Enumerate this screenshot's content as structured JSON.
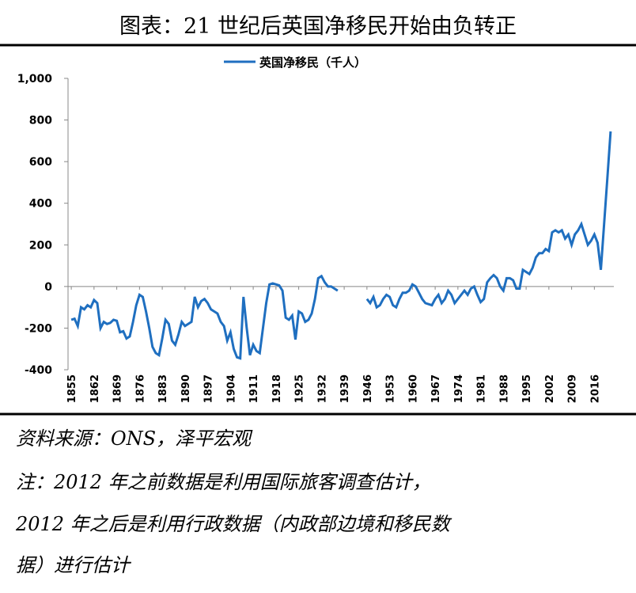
{
  "chart_data": {
    "type": "line",
    "title": "图表：21 世纪后英国净移民开始由负转正",
    "x": [
      1855,
      1856,
      1857,
      1858,
      1859,
      1860,
      1861,
      1862,
      1863,
      1864,
      1865,
      1866,
      1867,
      1868,
      1869,
      1870,
      1871,
      1872,
      1873,
      1874,
      1875,
      1876,
      1877,
      1878,
      1879,
      1880,
      1881,
      1882,
      1883,
      1884,
      1885,
      1886,
      1887,
      1888,
      1889,
      1890,
      1891,
      1892,
      1893,
      1894,
      1895,
      1896,
      1897,
      1898,
      1899,
      1900,
      1901,
      1902,
      1903,
      1904,
      1905,
      1906,
      1907,
      1908,
      1909,
      1910,
      1911,
      1912,
      1913,
      1914,
      1915,
      1916,
      1917,
      1918,
      1919,
      1920,
      1921,
      1922,
      1923,
      1924,
      1925,
      1926,
      1927,
      1928,
      1929,
      1930,
      1931,
      1932,
      1933,
      1934,
      1935,
      1936,
      1937,
      1938,
      1939,
      1940,
      1941,
      1942,
      1943,
      1944,
      1945,
      1946,
      1947,
      1948,
      1949,
      1950,
      1951,
      1952,
      1953,
      1954,
      1955,
      1956,
      1957,
      1958,
      1959,
      1960,
      1961,
      1962,
      1963,
      1964,
      1965,
      1966,
      1967,
      1968,
      1969,
      1970,
      1971,
      1972,
      1973,
      1974,
      1975,
      1976,
      1977,
      1978,
      1979,
      1980,
      1981,
      1982,
      1983,
      1984,
      1985,
      1986,
      1987,
      1988,
      1989,
      1990,
      1991,
      1992,
      1993,
      1994,
      1995,
      1996,
      1997,
      1998,
      1999,
      2000,
      2001,
      2002,
      2003,
      2004,
      2005,
      2006,
      2007,
      2008,
      2009,
      2010,
      2011,
      2012,
      2013,
      2014,
      2015,
      2016,
      2017,
      2018,
      2019,
      2020,
      2021
    ],
    "series": [
      {
        "name": "英国净移民（千人）",
        "color": "#1f6fc0",
        "values": [
          -160,
          -155,
          -190,
          -100,
          -110,
          -90,
          -100,
          -65,
          -80,
          -200,
          -170,
          -180,
          -175,
          -160,
          -165,
          -220,
          -215,
          -250,
          -240,
          -170,
          -90,
          -40,
          -50,
          -120,
          -200,
          -290,
          -320,
          -330,
          -250,
          -160,
          -180,
          -260,
          -280,
          -230,
          -170,
          -190,
          -180,
          -170,
          -50,
          -100,
          -70,
          -60,
          -80,
          -110,
          -120,
          -130,
          -170,
          -190,
          -260,
          -220,
          -300,
          -340,
          -345,
          -50,
          -200,
          -330,
          -280,
          -310,
          -320,
          -200,
          -80,
          10,
          15,
          10,
          5,
          -20,
          -150,
          -160,
          -140,
          -255,
          -120,
          -130,
          -170,
          -160,
          -130,
          -60,
          40,
          50,
          20,
          0,
          0,
          -10,
          -20,
          null,
          null,
          null,
          null,
          null,
          null,
          null,
          null,
          -60,
          -80,
          -50,
          -100,
          -90,
          -60,
          -40,
          -50,
          -90,
          -100,
          -60,
          -30,
          -30,
          -20,
          10,
          0,
          -30,
          -60,
          -80,
          -85,
          -90,
          -60,
          -40,
          -80,
          -60,
          -20,
          -40,
          -80,
          -60,
          -40,
          -20,
          -40,
          -10,
          0,
          -40,
          -75,
          -60,
          20,
          40,
          55,
          40,
          0,
          -20,
          40,
          40,
          30,
          -10,
          -10,
          80,
          70,
          60,
          90,
          140,
          160,
          160,
          180,
          170,
          260,
          270,
          260,
          270,
          230,
          250,
          200,
          250,
          270,
          300,
          250,
          200,
          220,
          250,
          210,
          80,
          300,
          520,
          745
        ]
      }
    ],
    "xlim": [
      1854,
      2022
    ],
    "xticks": [
      1855,
      1862,
      1869,
      1876,
      1883,
      1890,
      1897,
      1904,
      1911,
      1918,
      1925,
      1932,
      1939,
      1946,
      1953,
      1960,
      1967,
      1974,
      1981,
      1988,
      1995,
      2002,
      2009,
      2016
    ],
    "ylim": [
      -400,
      1000
    ],
    "yticks": [
      {
        "value": 1000,
        "label": "1,000"
      },
      800,
      600,
      400,
      200,
      0,
      -200,
      -400
    ],
    "source": "资料来源：ONS，泽平宏观",
    "notes": [
      "注：2012 年之前数据是利用国际旅客调查估计，",
      "2012 年之后是利用行政数据（内政部边境和移民数",
      "据）进行估计"
    ]
  }
}
